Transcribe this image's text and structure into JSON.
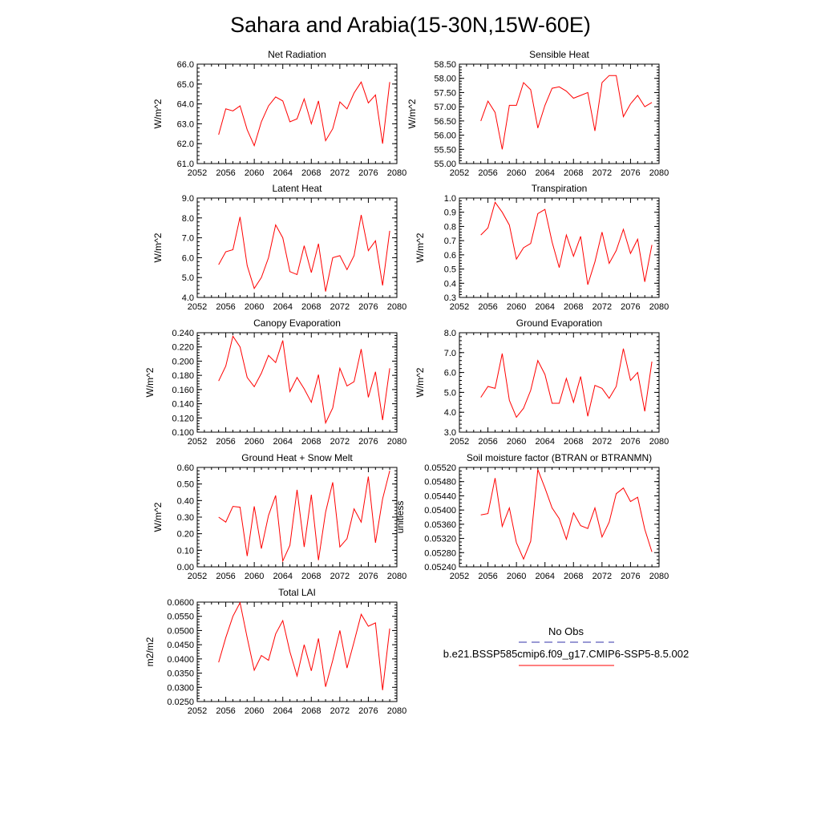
{
  "title": "Sahara and Arabia(15-30N,15W-60E)",
  "series_color": "#ff0000",
  "obs_color": "#3333aa",
  "legend": {
    "obs_label": "No Obs",
    "model_label": "b.e21.BSSP585cmip6.f09_g17.CMIP6-SSP5-8.5.002"
  },
  "chart_data": [
    {
      "type": "line",
      "title": "Net Radiation",
      "ylabel": "W/m^2",
      "xlim": [
        2052,
        2080
      ],
      "ylim": [
        61.0,
        66.0
      ],
      "xticks": [
        2052,
        2056,
        2060,
        2064,
        2068,
        2072,
        2076,
        2080
      ],
      "yticks": [
        "61.0",
        "62.0",
        "63.0",
        "64.0",
        "65.0",
        "66.0"
      ],
      "ytick_minor": 0.2,
      "x": [
        2055,
        2056,
        2057,
        2058,
        2059,
        2060,
        2061,
        2062,
        2063,
        2064,
        2065,
        2066,
        2067,
        2068,
        2069,
        2070,
        2071,
        2072,
        2073,
        2074,
        2075,
        2076,
        2077,
        2078,
        2079
      ],
      "y": [
        62.45,
        63.75,
        63.65,
        63.9,
        62.7,
        61.9,
        63.1,
        63.9,
        64.35,
        64.15,
        63.1,
        63.25,
        64.25,
        63.0,
        64.15,
        62.15,
        62.75,
        64.1,
        63.75,
        64.55,
        65.1,
        64.05,
        64.45,
        62.0,
        65.1
      ]
    },
    {
      "type": "line",
      "title": "Sensible Heat",
      "ylabel": "W/m^2",
      "xlim": [
        2052,
        2080
      ],
      "ylim": [
        55.0,
        58.5
      ],
      "xticks": [
        2052,
        2056,
        2060,
        2064,
        2068,
        2072,
        2076,
        2080
      ],
      "yticks": [
        "55.00",
        "55.50",
        "56.00",
        "56.50",
        "57.00",
        "57.50",
        "58.00",
        "58.50"
      ],
      "ytick_minor": 0.1,
      "x": [
        2055,
        2056,
        2057,
        2058,
        2059,
        2060,
        2061,
        2062,
        2063,
        2064,
        2065,
        2066,
        2067,
        2068,
        2069,
        2070,
        2071,
        2072,
        2073,
        2074,
        2075,
        2076,
        2077,
        2078,
        2079
      ],
      "y": [
        56.5,
        57.2,
        56.8,
        55.5,
        57.05,
        57.05,
        57.85,
        57.6,
        56.25,
        57.05,
        57.65,
        57.7,
        57.55,
        57.3,
        57.4,
        57.5,
        56.15,
        57.85,
        58.1,
        58.1,
        56.65,
        57.1,
        57.4,
        57.0,
        57.15
      ]
    },
    {
      "type": "line",
      "title": "Latent Heat",
      "ylabel": "W/m^2",
      "xlim": [
        2052,
        2080
      ],
      "ylim": [
        4.0,
        9.0
      ],
      "xticks": [
        2052,
        2056,
        2060,
        2064,
        2068,
        2072,
        2076,
        2080
      ],
      "yticks": [
        "4.0",
        "5.0",
        "6.0",
        "7.0",
        "8.0",
        "9.0"
      ],
      "ytick_minor": 0.2,
      "x": [
        2055,
        2056,
        2057,
        2058,
        2059,
        2060,
        2061,
        2062,
        2063,
        2064,
        2065,
        2066,
        2067,
        2068,
        2069,
        2070,
        2071,
        2072,
        2073,
        2074,
        2075,
        2076,
        2077,
        2078,
        2079
      ],
      "y": [
        5.65,
        6.3,
        6.4,
        8.05,
        5.6,
        4.45,
        5.0,
        6.0,
        7.65,
        7.0,
        5.3,
        5.15,
        6.6,
        5.25,
        6.7,
        4.3,
        6.0,
        6.1,
        5.4,
        6.1,
        8.15,
        6.35,
        6.85,
        4.6,
        7.35
      ]
    },
    {
      "type": "line",
      "title": "Transpiration",
      "ylabel": "W/m^2",
      "xlim": [
        2052,
        2080
      ],
      "ylim": [
        0.3,
        1.0
      ],
      "xticks": [
        2052,
        2056,
        2060,
        2064,
        2068,
        2072,
        2076,
        2080
      ],
      "yticks": [
        "0.3",
        "0.4",
        "0.5",
        "0.6",
        "0.7",
        "0.8",
        "0.9",
        "1.0"
      ],
      "ytick_minor": 0.02,
      "x": [
        2055,
        2056,
        2057,
        2058,
        2059,
        2060,
        2061,
        2062,
        2063,
        2064,
        2065,
        2066,
        2067,
        2068,
        2069,
        2070,
        2071,
        2072,
        2073,
        2074,
        2075,
        2076,
        2077,
        2078,
        2079
      ],
      "y": [
        0.74,
        0.79,
        0.97,
        0.9,
        0.81,
        0.57,
        0.65,
        0.68,
        0.89,
        0.92,
        0.69,
        0.51,
        0.74,
        0.59,
        0.73,
        0.39,
        0.55,
        0.76,
        0.54,
        0.63,
        0.78,
        0.61,
        0.71,
        0.41,
        0.67
      ]
    },
    {
      "type": "line",
      "title": "Canopy Evaporation",
      "ylabel": "W/m^2",
      "xlim": [
        2052,
        2080
      ],
      "ylim": [
        0.1,
        0.24
      ],
      "xticks": [
        2052,
        2056,
        2060,
        2064,
        2068,
        2072,
        2076,
        2080
      ],
      "yticks": [
        "0.100",
        "0.120",
        "0.140",
        "0.160",
        "0.180",
        "0.200",
        "0.220",
        "0.240"
      ],
      "ytick_minor": 0.004,
      "x": [
        2055,
        2056,
        2057,
        2058,
        2059,
        2060,
        2061,
        2062,
        2063,
        2064,
        2065,
        2066,
        2067,
        2068,
        2069,
        2070,
        2071,
        2072,
        2073,
        2074,
        2075,
        2076,
        2077,
        2078,
        2079
      ],
      "y": [
        0.172,
        0.193,
        0.235,
        0.22,
        0.177,
        0.164,
        0.183,
        0.208,
        0.198,
        0.229,
        0.157,
        0.177,
        0.161,
        0.142,
        0.181,
        0.113,
        0.134,
        0.19,
        0.165,
        0.171,
        0.217,
        0.149,
        0.185,
        0.117,
        0.19
      ]
    },
    {
      "type": "line",
      "title": "Ground Evaporation",
      "ylabel": "W/m^2",
      "xlim": [
        2052,
        2080
      ],
      "ylim": [
        3.0,
        8.0
      ],
      "xticks": [
        2052,
        2056,
        2060,
        2064,
        2068,
        2072,
        2076,
        2080
      ],
      "yticks": [
        "3.0",
        "4.0",
        "5.0",
        "6.0",
        "7.0",
        "8.0"
      ],
      "ytick_minor": 0.2,
      "x": [
        2055,
        2056,
        2057,
        2058,
        2059,
        2060,
        2061,
        2062,
        2063,
        2064,
        2065,
        2066,
        2067,
        2068,
        2069,
        2070,
        2071,
        2072,
        2073,
        2074,
        2075,
        2076,
        2077,
        2078,
        2079
      ],
      "y": [
        4.75,
        5.3,
        5.2,
        6.95,
        4.6,
        3.75,
        4.2,
        5.1,
        6.6,
        5.9,
        4.45,
        4.45,
        5.7,
        4.5,
        5.8,
        3.8,
        5.35,
        5.2,
        4.7,
        5.3,
        7.2,
        5.6,
        6.0,
        4.05,
        6.55
      ]
    },
    {
      "type": "line",
      "title": "Ground Heat + Snow Melt",
      "ylabel": "W/m^2",
      "xlim": [
        2052,
        2080
      ],
      "ylim": [
        0.0,
        0.6
      ],
      "xticks": [
        2052,
        2056,
        2060,
        2064,
        2068,
        2072,
        2076,
        2080
      ],
      "yticks": [
        "0.00",
        "0.10",
        "0.20",
        "0.30",
        "0.40",
        "0.50",
        "0.60"
      ],
      "ytick_minor": 0.02,
      "x": [
        2055,
        2056,
        2057,
        2058,
        2059,
        2060,
        2061,
        2062,
        2063,
        2064,
        2065,
        2066,
        2067,
        2068,
        2069,
        2070,
        2071,
        2072,
        2073,
        2074,
        2075,
        2076,
        2077,
        2078,
        2079
      ],
      "y": [
        0.3,
        0.27,
        0.365,
        0.36,
        0.065,
        0.365,
        0.11,
        0.31,
        0.43,
        0.035,
        0.13,
        0.465,
        0.12,
        0.435,
        0.04,
        0.33,
        0.51,
        0.12,
        0.17,
        0.35,
        0.27,
        0.545,
        0.145,
        0.41,
        0.58
      ]
    },
    {
      "type": "line",
      "title": "Soil moisture factor (BTRAN or BTRANMN)",
      "ylabel": "unitless",
      "xlim": [
        2052,
        2080
      ],
      "ylim": [
        0.0524,
        0.0552
      ],
      "xticks": [
        2052,
        2056,
        2060,
        2064,
        2068,
        2072,
        2076,
        2080
      ],
      "yticks": [
        "0.05240",
        "0.05280",
        "0.05320",
        "0.05360",
        "0.05400",
        "0.05440",
        "0.05480",
        "0.05520"
      ],
      "ytick_minor": 0.0001,
      "x": [
        2055,
        2056,
        2057,
        2058,
        2059,
        2060,
        2061,
        2062,
        2063,
        2064,
        2065,
        2066,
        2067,
        2068,
        2069,
        2070,
        2071,
        2072,
        2073,
        2074,
        2075,
        2076,
        2077,
        2078,
        2079
      ],
      "y": [
        0.05386,
        0.0539,
        0.0549,
        0.05354,
        0.05406,
        0.05308,
        0.05262,
        0.05312,
        0.05514,
        0.05462,
        0.05406,
        0.05376,
        0.05318,
        0.05392,
        0.05356,
        0.05348,
        0.05406,
        0.05324,
        0.05366,
        0.05446,
        0.05462,
        0.05424,
        0.05436,
        0.05346,
        0.05282
      ]
    },
    {
      "type": "line",
      "title": "Total LAI",
      "ylabel": "m2/m2",
      "xlim": [
        2052,
        2080
      ],
      "ylim": [
        0.025,
        0.06
      ],
      "xticks": [
        2052,
        2056,
        2060,
        2064,
        2068,
        2072,
        2076,
        2080
      ],
      "yticks": [
        "0.0250",
        "0.0300",
        "0.0350",
        "0.0400",
        "0.0450",
        "0.0500",
        "0.0550",
        "0.0600"
      ],
      "ytick_minor": 0.001,
      "x": [
        2055,
        2056,
        2057,
        2058,
        2059,
        2060,
        2061,
        2062,
        2063,
        2064,
        2065,
        2066,
        2067,
        2068,
        2069,
        2070,
        2071,
        2072,
        2073,
        2074,
        2075,
        2076,
        2077,
        2078,
        2079
      ],
      "y": [
        0.0388,
        0.0475,
        0.055,
        0.0598,
        0.0475,
        0.036,
        0.0412,
        0.0395,
        0.0488,
        0.0535,
        0.0425,
        0.034,
        0.045,
        0.0358,
        0.0472,
        0.0302,
        0.0395,
        0.05,
        0.0368,
        0.046,
        0.0557,
        0.0515,
        0.0527,
        0.029,
        0.0507
      ]
    }
  ]
}
